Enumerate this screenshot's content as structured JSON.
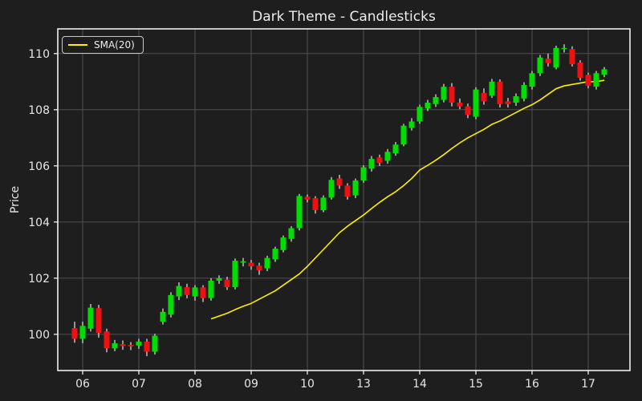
{
  "title": "Dark Theme - Candlesticks",
  "y_axis_label": "Price",
  "legend": {
    "items": [
      {
        "label": "SMA(20)",
        "color": "#ffef00"
      }
    ]
  },
  "colors": {
    "background": "#1e1e1e",
    "grid": "#505050",
    "spine": "#eeeeee",
    "text": "#e6e6e6",
    "up": "#00dd00",
    "down": "#ee1111",
    "wick": "#d8d8d8",
    "sma": "#ffef00"
  },
  "chart_data": {
    "type": "candlestick",
    "title": "Dark Theme - Candlesticks",
    "xlabel": "",
    "ylabel": "Price",
    "grid": true,
    "legend_position": "upper-left",
    "y_ticks": [
      100,
      102,
      104,
      106,
      108,
      110
    ],
    "ylim": [
      98.71,
      110.88
    ],
    "x_tick_labels": [
      "06",
      "07",
      "08",
      "09",
      "10",
      "13",
      "14",
      "15",
      "16",
      "17"
    ],
    "x_tick_indices": [
      1,
      8,
      15,
      22,
      29,
      36,
      43,
      50,
      57,
      64
    ],
    "ohlc_columns": [
      "open",
      "high",
      "low",
      "close"
    ],
    "ohlc": [
      [
        100.22,
        100.45,
        99.7,
        99.84
      ],
      [
        99.84,
        100.45,
        99.68,
        100.3
      ],
      [
        100.2,
        101.08,
        100.1,
        100.95
      ],
      [
        100.93,
        101.05,
        99.88,
        100.05
      ],
      [
        100.1,
        100.2,
        99.36,
        99.5
      ],
      [
        99.5,
        99.8,
        99.4,
        99.68
      ],
      [
        99.65,
        99.78,
        99.45,
        99.58
      ],
      [
        99.62,
        99.72,
        99.44,
        99.57
      ],
      [
        99.6,
        99.84,
        99.48,
        99.74
      ],
      [
        99.74,
        99.84,
        99.22,
        99.38
      ],
      [
        99.38,
        100.02,
        99.28,
        99.95
      ],
      [
        100.45,
        100.92,
        100.35,
        100.8
      ],
      [
        100.7,
        101.5,
        100.6,
        101.4
      ],
      [
        101.35,
        101.85,
        101.22,
        101.72
      ],
      [
        101.68,
        101.8,
        101.28,
        101.4
      ],
      [
        101.35,
        101.75,
        101.2,
        101.67
      ],
      [
        101.67,
        101.75,
        101.15,
        101.29
      ],
      [
        101.29,
        102.0,
        101.2,
        101.91
      ],
      [
        101.91,
        102.1,
        101.8,
        102.0
      ],
      [
        101.95,
        102.05,
        101.58,
        101.68
      ],
      [
        101.68,
        102.7,
        101.6,
        102.62
      ],
      [
        102.55,
        102.72,
        102.42,
        102.6
      ],
      [
        102.55,
        102.65,
        102.3,
        102.42
      ],
      [
        102.45,
        102.55,
        102.12,
        102.28
      ],
      [
        102.35,
        102.8,
        102.25,
        102.72
      ],
      [
        102.67,
        103.12,
        102.58,
        103.05
      ],
      [
        103.0,
        103.52,
        102.92,
        103.45
      ],
      [
        103.4,
        103.85,
        103.3,
        103.78
      ],
      [
        103.78,
        105.0,
        103.7,
        104.93
      ],
      [
        104.9,
        104.98,
        104.7,
        104.8
      ],
      [
        104.85,
        104.92,
        104.3,
        104.42
      ],
      [
        104.42,
        104.95,
        104.35,
        104.87
      ],
      [
        104.87,
        105.6,
        104.8,
        105.5
      ],
      [
        105.55,
        105.68,
        105.18,
        105.3
      ],
      [
        105.3,
        105.38,
        104.8,
        104.9
      ],
      [
        104.95,
        105.55,
        104.85,
        105.48
      ],
      [
        105.48,
        106.02,
        105.4,
        105.95
      ],
      [
        105.9,
        106.35,
        105.8,
        106.25
      ],
      [
        106.3,
        106.4,
        106.0,
        106.1
      ],
      [
        106.18,
        106.6,
        106.08,
        106.5
      ],
      [
        106.45,
        106.85,
        106.36,
        106.76
      ],
      [
        106.76,
        107.5,
        106.7,
        107.43
      ],
      [
        107.35,
        107.7,
        107.26,
        107.58
      ],
      [
        107.58,
        108.18,
        107.5,
        108.1
      ],
      [
        108.05,
        108.35,
        107.95,
        108.25
      ],
      [
        108.2,
        108.55,
        108.1,
        108.45
      ],
      [
        108.35,
        108.92,
        108.26,
        108.82
      ],
      [
        108.82,
        108.95,
        108.12,
        108.25
      ],
      [
        108.25,
        108.4,
        108.02,
        108.12
      ],
      [
        108.12,
        108.22,
        107.7,
        107.82
      ],
      [
        107.75,
        108.8,
        107.66,
        108.72
      ],
      [
        108.6,
        108.76,
        108.18,
        108.3
      ],
      [
        108.5,
        109.1,
        108.42,
        109.0
      ],
      [
        109.0,
        109.08,
        108.08,
        108.2
      ],
      [
        108.3,
        108.42,
        108.08,
        108.2
      ],
      [
        108.25,
        108.58,
        108.14,
        108.48
      ],
      [
        108.4,
        108.98,
        108.3,
        108.88
      ],
      [
        108.82,
        109.38,
        108.72,
        109.3
      ],
      [
        109.3,
        109.95,
        109.2,
        109.86
      ],
      [
        109.82,
        110.0,
        109.54,
        109.66
      ],
      [
        109.5,
        110.28,
        109.44,
        110.2
      ],
      [
        110.16,
        110.33,
        110.04,
        110.2
      ],
      [
        110.16,
        110.26,
        109.54,
        109.62
      ],
      [
        109.68,
        109.76,
        109.04,
        109.14
      ],
      [
        109.24,
        109.32,
        108.76,
        108.86
      ],
      [
        108.82,
        109.38,
        108.72,
        109.3
      ],
      [
        109.25,
        109.52,
        109.16,
        109.44
      ]
    ],
    "series": [
      {
        "name": "SMA(20)",
        "type": "line",
        "color": "#ffef00",
        "values": [
          null,
          null,
          null,
          null,
          null,
          null,
          null,
          null,
          null,
          null,
          null,
          null,
          null,
          null,
          null,
          null,
          null,
          100.55,
          100.65,
          100.75,
          100.88,
          101.0,
          101.1,
          101.25,
          101.4,
          101.55,
          101.75,
          101.95,
          102.15,
          102.42,
          102.72,
          103.02,
          103.32,
          103.62,
          103.85,
          104.05,
          104.25,
          104.48,
          104.7,
          104.9,
          105.08,
          105.3,
          105.55,
          105.85,
          106.02,
          106.2,
          106.4,
          106.62,
          106.82,
          107.0,
          107.15,
          107.3,
          107.48,
          107.6,
          107.75,
          107.9,
          108.05,
          108.18,
          108.35,
          108.55,
          108.75,
          108.85,
          108.9,
          108.95,
          109.0,
          109.0,
          109.05
        ]
      }
    ]
  }
}
